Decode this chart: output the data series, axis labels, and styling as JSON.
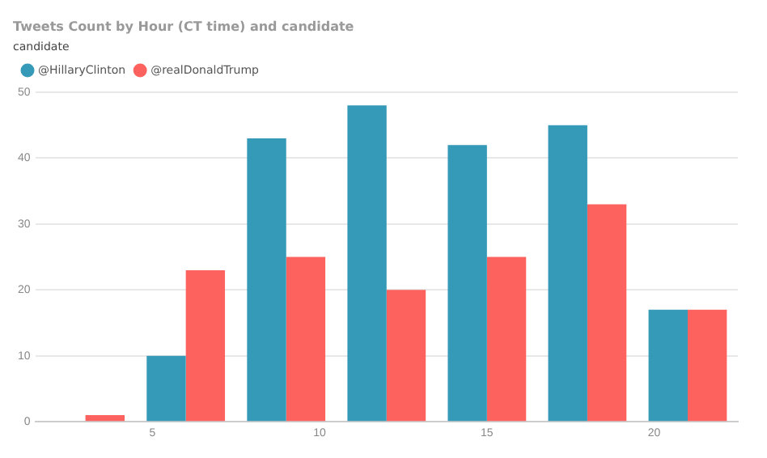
{
  "chart_data": {
    "type": "bar",
    "title": "Tweets Count by Hour (CT time) and candidate",
    "legend_title": "candidate",
    "legend": "top left",
    "grid": "y",
    "x": [
      3,
      6,
      9,
      12,
      15,
      18,
      21
    ],
    "xlim": [
      1.5,
      22.5
    ],
    "xticks": [
      5,
      10,
      15,
      20
    ],
    "ylim": [
      0,
      50
    ],
    "yticks": [
      0,
      10,
      20,
      30,
      40,
      50
    ],
    "series": [
      {
        "name": "@HillaryClinton",
        "color": "#3599b8",
        "values": [
          0,
          10,
          43,
          48,
          42,
          45,
          17
        ]
      },
      {
        "name": "@realDonaldTrump",
        "color": "#fd625e",
        "values": [
          1,
          23,
          25,
          20,
          25,
          33,
          17
        ]
      }
    ]
  }
}
